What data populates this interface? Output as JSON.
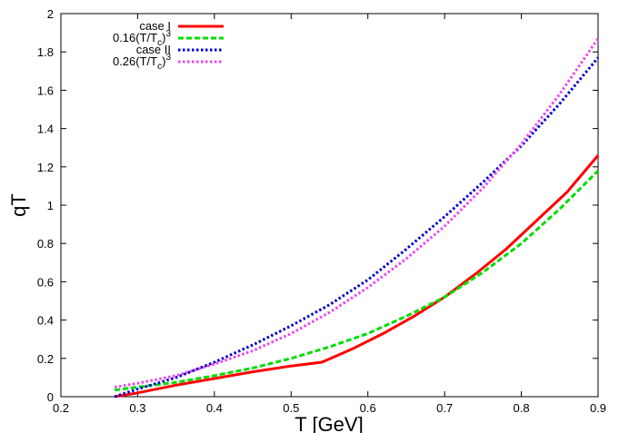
{
  "chart_data": {
    "type": "line",
    "xlabel": "T [GeV]",
    "ylabel": "qT",
    "xlim": [
      0.2,
      0.9
    ],
    "ylim": [
      0,
      2
    ],
    "xticks": [
      "0.2",
      "0.3",
      "0.4",
      "0.5",
      "0.6",
      "0.7",
      "0.8",
      "0.9"
    ],
    "yticks": [
      "0",
      "0.2",
      "0.4",
      "0.6",
      "0.8",
      "1",
      "1.2",
      "1.4",
      "1.6",
      "1.8",
      "2"
    ],
    "grid": false,
    "legend_position": "top-left",
    "series": [
      {
        "name": "case I",
        "color": "#ff0000",
        "style": "solid",
        "x": [
          0.27,
          0.3,
          0.35,
          0.4,
          0.45,
          0.5,
          0.54,
          0.58,
          0.62,
          0.66,
          0.7,
          0.74,
          0.78,
          0.82,
          0.86,
          0.9
        ],
        "y": [
          0.0,
          0.02,
          0.06,
          0.095,
          0.13,
          0.16,
          0.18,
          0.25,
          0.33,
          0.42,
          0.52,
          0.64,
          0.77,
          0.92,
          1.07,
          1.26
        ]
      },
      {
        "name": "0.16(T/Tc)^3",
        "color": "#00dd00",
        "style": "dashed",
        "x": [
          0.27,
          0.3,
          0.35,
          0.4,
          0.45,
          0.5,
          0.55,
          0.6,
          0.65,
          0.7,
          0.75,
          0.8,
          0.85,
          0.9
        ],
        "y": [
          0.035,
          0.05,
          0.075,
          0.11,
          0.15,
          0.2,
          0.26,
          0.33,
          0.42,
          0.52,
          0.65,
          0.8,
          0.98,
          1.18
        ]
      },
      {
        "name": "case II",
        "color": "#0000cc",
        "style": "dotted",
        "x": [
          0.27,
          0.3,
          0.35,
          0.4,
          0.45,
          0.5,
          0.55,
          0.6,
          0.65,
          0.7,
          0.75,
          0.8,
          0.85,
          0.9
        ],
        "y": [
          0.0,
          0.04,
          0.1,
          0.18,
          0.27,
          0.37,
          0.48,
          0.61,
          0.77,
          0.94,
          1.12,
          1.31,
          1.53,
          1.77
        ]
      },
      {
        "name": "0.26(T/Tc)^3",
        "color": "#ee44ee",
        "style": "dotted",
        "x": [
          0.27,
          0.3,
          0.35,
          0.4,
          0.45,
          0.5,
          0.55,
          0.6,
          0.65,
          0.7,
          0.75,
          0.8,
          0.85,
          0.9
        ],
        "y": [
          0.05,
          0.07,
          0.11,
          0.17,
          0.24,
          0.33,
          0.44,
          0.57,
          0.72,
          0.89,
          1.09,
          1.32,
          1.58,
          1.87
        ]
      }
    ],
    "legend": [
      {
        "base": "case I",
        "sub": "",
        "sup": ""
      },
      {
        "base": "0.16(T/T",
        "sub": "c",
        "sup": "3"
      },
      {
        "base": "case II",
        "sub": "",
        "sup": ""
      },
      {
        "base": "0.26(T/T",
        "sub": "c",
        "sup": "3"
      }
    ]
  }
}
